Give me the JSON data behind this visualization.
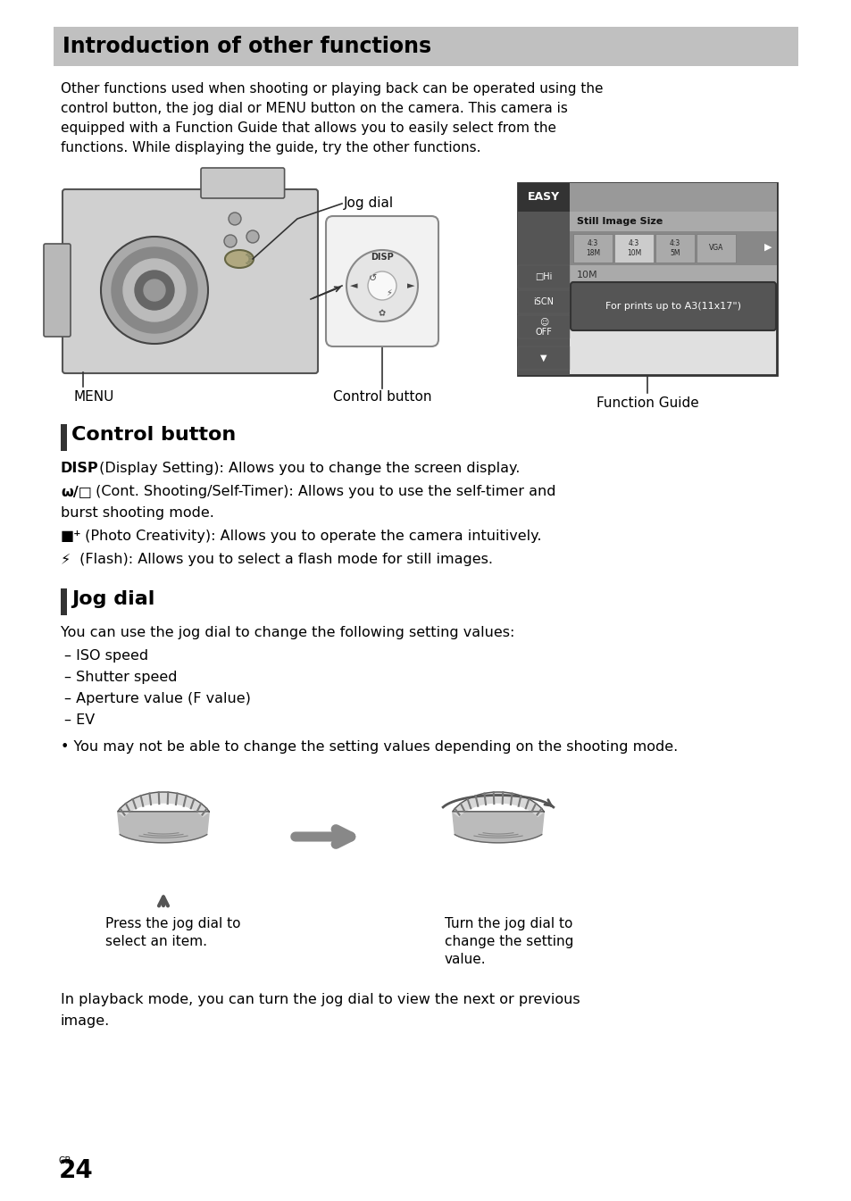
{
  "page_bg": "#ffffff",
  "header_bg": "#c0c0c0",
  "header_text": "Introduction of other functions",
  "intro_text": "Other functions used when shooting or playing back can be operated using the control button, the jog dial or MENU button on the camera. This camera is equipped with a Function Guide that allows you to easily select from the functions. While displaying the guide, try the other functions.",
  "label_jog": "Jog dial",
  "label_menu": "MENU",
  "label_ctrl": "Control button",
  "label_fg": "Function Guide",
  "sec1_title": "Control button",
  "sec1_bar_color": "#333333",
  "sec2_title": "Jog dial",
  "body_color": "#000000",
  "disp_line": "DISP (Display Setting): Allows you to change the screen display.",
  "cont_line1": "ω/□ (Cont. Shooting/Self-Timer): Allows you to use the self-timer and",
  "cont_line2": "burst shooting mode.",
  "photo_line": "■⁺ (Photo Creativity): Allows you to operate the camera intuitively.",
  "flash_line": "⚡ (Flash): Allows you to select a flash mode for still images.",
  "jog_intro": "You can use the jog dial to change the following setting values:",
  "jog_list": [
    "– ISO speed",
    "– Shutter speed",
    "– Aperture value (F value)",
    "– EV"
  ],
  "jog_note": "• You may not be able to change the setting values depending on the shooting mode.",
  "caption_left": "Press the jog dial to\nselect an item.",
  "caption_right": "Turn the jog dial to\nchange the setting\nvalue.",
  "footer": "In playback mode, you can turn the jog dial to view the next or previous",
  "footer2": "image.",
  "page_num": "24",
  "page_super": "GB"
}
